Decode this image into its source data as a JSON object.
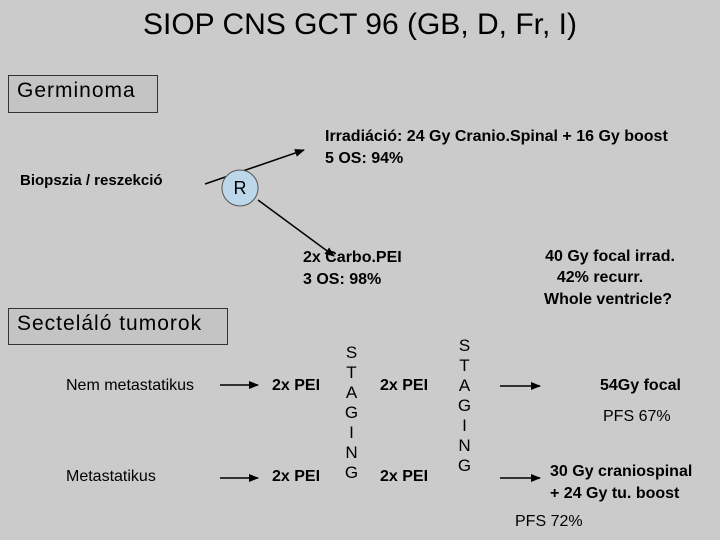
{
  "title": "SIOP CNS GCT 96 (GB, D, Fr, I)",
  "germinoma": {
    "heading": "Germinoma",
    "biopsy": "Biopszia / reszekció",
    "randomization": "R",
    "arm_a": [
      "Irradiáció: 24 Gy Cranio.Spinal + 16 Gy boost",
      "5 OS: 94%"
    ],
    "arm_b": [
      "2x Carbo.PEI",
      "3 OS: 98%"
    ],
    "arm_b_followup": [
      "40 Gy focal irrad.",
      "42% recurr.",
      "Whole ventricle?"
    ]
  },
  "secreting": {
    "heading": "Secteláló tumorok",
    "staging": [
      "STAGING",
      "STAGING"
    ],
    "rows": [
      {
        "label": "Nem metastatikus",
        "chemo_1": "2x PEI",
        "chemo_2": "2x PEI",
        "therapy": [
          "54Gy focal"
        ],
        "outcome": "PFS 67%"
      },
      {
        "label": "Metastatikus",
        "chemo_1": "2x PEI",
        "chemo_2": "2x PEI",
        "therapy": [
          "30 Gy craniospinal",
          "+ 24 Gy tu. boost"
        ],
        "outcome": "PFS 72%"
      }
    ]
  }
}
